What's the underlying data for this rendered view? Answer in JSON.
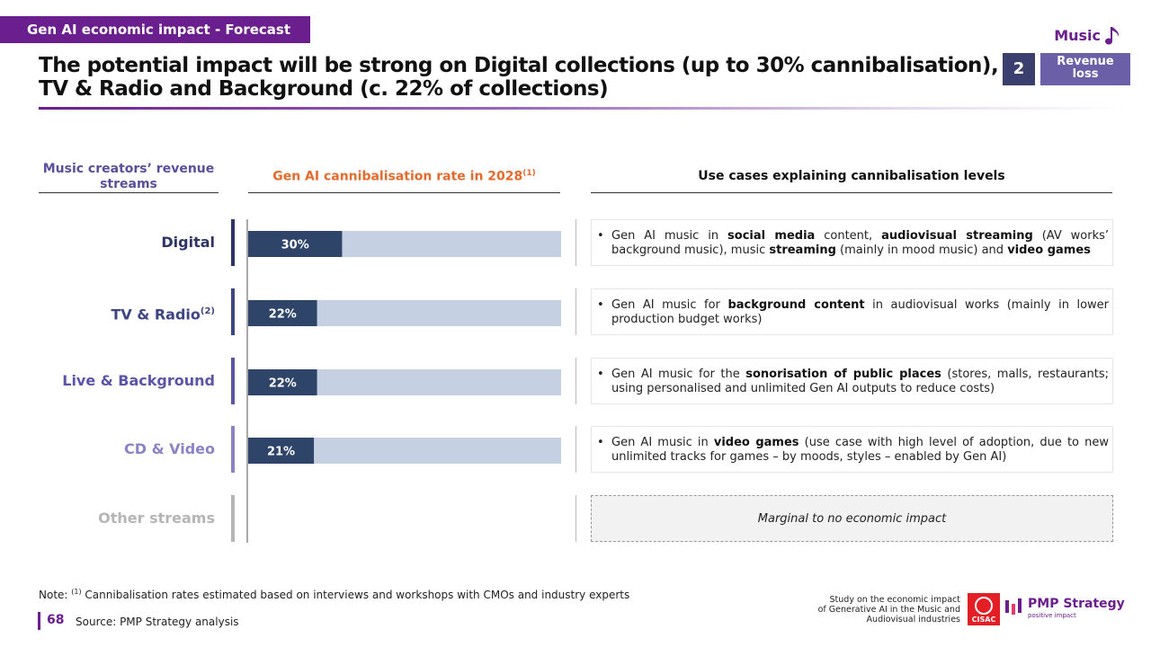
{
  "header": {
    "tag": "Gen AI economic impact - Forecast",
    "section": "Music",
    "section_icon": "music-note-icon",
    "title_line1": "The potential impact will be strong on Digital collections (up to 30% cannibalisation),",
    "title_line2": "TV & Radio and Background (c. 22% of collections)",
    "badge_number": "2",
    "badge_label_line1": "Revenue",
    "badge_label_line2": "loss"
  },
  "columns": {
    "streams_line1": "Music creators’ revenue",
    "streams_line2": "streams",
    "rate": "Gen AI cannibalisation rate in 2028",
    "rate_note": "(1)",
    "usecases": "Use cases explaining cannibalisation levels"
  },
  "rows": [
    {
      "label": "Digital",
      "sup": "",
      "color": "#2e3466"
    },
    {
      "label": "TV & Radio",
      "sup": "(2)",
      "color": "#3d4582"
    },
    {
      "label": "Live & Background",
      "sup": "",
      "color": "#5a55a8"
    },
    {
      "label": "CD & Video",
      "sup": "",
      "color": "#8a84c6"
    },
    {
      "label": "Other streams",
      "sup": "",
      "color": "#b5b5b5"
    }
  ],
  "usecases": [
    {
      "parts": [
        [
          "Gen AI music in ",
          false
        ],
        [
          "social media",
          true
        ],
        [
          " content, ",
          false
        ],
        [
          "audiovisual streaming",
          true
        ],
        [
          " (AV works’ background music), music ",
          false
        ],
        [
          "streaming",
          true
        ],
        [
          " (mainly in mood music) and ",
          false
        ],
        [
          "video games",
          true
        ]
      ]
    },
    {
      "parts": [
        [
          "Gen AI music for ",
          false
        ],
        [
          "background content",
          true
        ],
        [
          " in audiovisual works (mainly in lower production budget works)",
          false
        ]
      ]
    },
    {
      "parts": [
        [
          "Gen AI music for the ",
          false
        ],
        [
          "sonorisation of public places",
          true
        ],
        [
          " (stores, malls, restaurants; using personalised and unlimited Gen AI outputs to reduce costs)",
          false
        ]
      ]
    },
    {
      "parts": [
        [
          "Gen AI music in ",
          false
        ],
        [
          "video games",
          true
        ],
        [
          " (use case with high level of adoption, due to new unlimited tracks for games – by moods, styles – enabled by Gen AI)",
          false
        ]
      ]
    }
  ],
  "other_usecase": "Marginal to no economic impact",
  "chart_data": {
    "type": "bar",
    "orientation": "horizontal",
    "categories": [
      "Digital",
      "TV & Radio",
      "Live & Background",
      "CD & Video"
    ],
    "values": [
      30,
      22,
      22,
      21
    ],
    "data_labels": [
      "30%",
      "22%",
      "22%",
      "21%"
    ],
    "xlim": [
      0,
      100
    ],
    "unit": "%",
    "bar_color": "#2e4468",
    "track_color": "#c5d0e2",
    "title": "Gen AI cannibalisation rate in 2028"
  },
  "footer": {
    "note_prefix": "Note: ",
    "note_sup": "(1)",
    "note_text": " Cannibalisation rates estimated based on interviews and workshops with CMOs and industry experts",
    "page": "68",
    "source": "Source:  PMP Strategy analysis",
    "study_line1": "Study on the economic impact",
    "study_line2": "of Generative AI in the Music and",
    "study_line3": "Audiovisual industries",
    "cisac_logo": "CISAC",
    "pmp_logo": "PMP Strategy",
    "pmp_tagline": "positive impact"
  }
}
